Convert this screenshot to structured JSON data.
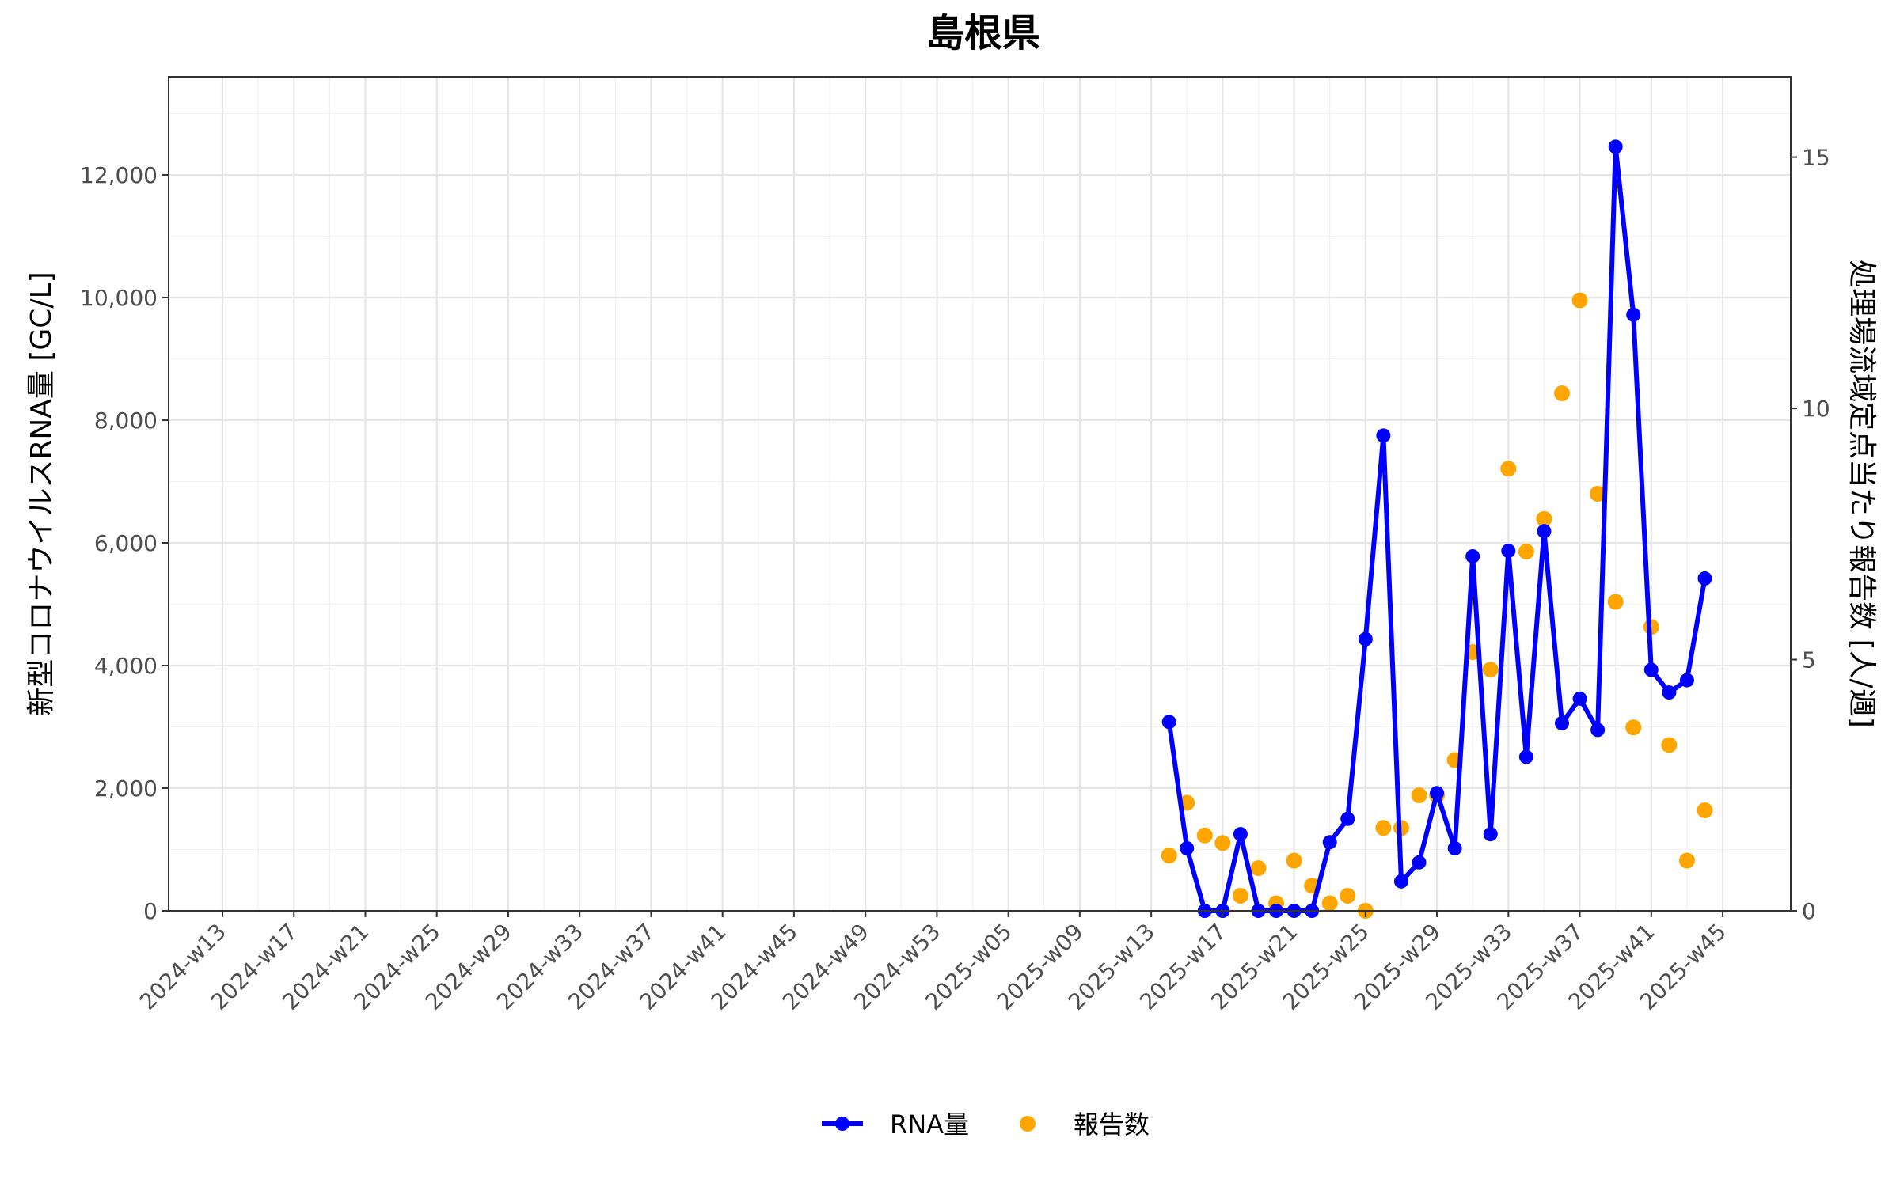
{
  "chart_data": {
    "type": "line",
    "title": "島根県",
    "ylabel": "新型コロナウイルスRNA量 [GC/L]",
    "y2label": "処理場流域定点当たり報告数 [人/週]",
    "ylim": [
      0,
      13600
    ],
    "y2lim": [
      0,
      16.6
    ],
    "yticks": [
      0,
      2000,
      4000,
      6000,
      8000,
      10000,
      12000
    ],
    "ytick_labels": [
      "0",
      "2,000",
      "4,000",
      "6,000",
      "8,000",
      "10,000",
      "12,000"
    ],
    "y2ticks": [
      0,
      5,
      10,
      15
    ],
    "y2tick_labels": [
      "0",
      "5",
      "10",
      "15"
    ],
    "x_categories": [
      "2024-w13",
      "2024-w14",
      "2024-w15",
      "2024-w16",
      "2024-w17",
      "2024-w18",
      "2024-w19",
      "2024-w20",
      "2024-w21",
      "2024-w22",
      "2024-w23",
      "2024-w24",
      "2024-w25",
      "2024-w26",
      "2024-w27",
      "2024-w28",
      "2024-w29",
      "2024-w30",
      "2024-w31",
      "2024-w32",
      "2024-w33",
      "2024-w34",
      "2024-w35",
      "2024-w36",
      "2024-w37",
      "2024-w38",
      "2024-w39",
      "2024-w40",
      "2024-w41",
      "2024-w42",
      "2024-w43",
      "2024-w44",
      "2024-w45",
      "2024-w46",
      "2024-w47",
      "2024-w48",
      "2024-w49",
      "2024-w50",
      "2024-w51",
      "2024-w52",
      "2024-w53",
      "2025-w02",
      "2025-w03",
      "2025-w04",
      "2025-w05",
      "2025-w06",
      "2025-w07",
      "2025-w08",
      "2025-w09",
      "2025-w10",
      "2025-w11",
      "2025-w12",
      "2025-w13",
      "2025-w14",
      "2025-w15",
      "2025-w16",
      "2025-w17",
      "2025-w18",
      "2025-w19",
      "2025-w20",
      "2025-w21",
      "2025-w22",
      "2025-w23",
      "2025-w24",
      "2025-w25",
      "2025-w26",
      "2025-w27",
      "2025-w28",
      "2025-w29",
      "2025-w30",
      "2025-w31",
      "2025-w32",
      "2025-w33",
      "2025-w34",
      "2025-w35",
      "2025-w36",
      "2025-w37",
      "2025-w38",
      "2025-w39",
      "2025-w40",
      "2025-w41",
      "2025-w42",
      "2025-w43",
      "2025-w44",
      "2025-w45",
      "2025-w46",
      "2025-w47"
    ],
    "x_tick_labels": [
      "2024-w13",
      "2024-w17",
      "2024-w21",
      "2024-w25",
      "2024-w29",
      "2024-w33",
      "2024-w37",
      "2024-w41",
      "2024-w45",
      "2024-w49",
      "2024-w53",
      "2025-w05",
      "2025-w09",
      "2025-w13",
      "2025-w17",
      "2025-w21",
      "2025-w25",
      "2025-w29",
      "2025-w33",
      "2025-w37",
      "2025-w41",
      "2025-w45"
    ],
    "series": [
      {
        "name": "RNA量",
        "axis": "left",
        "style": "line+points",
        "color": "#0000FF",
        "points": [
          {
            "x": "2025-w14",
            "y": 3080
          },
          {
            "x": "2025-w15",
            "y": 1020
          },
          {
            "x": "2025-w16",
            "y": 0
          },
          {
            "x": "2025-w17",
            "y": 0
          },
          {
            "x": "2025-w18",
            "y": 1250
          },
          {
            "x": "2025-w19",
            "y": 0
          },
          {
            "x": "2025-w20",
            "y": 0
          },
          {
            "x": "2025-w21",
            "y": 0
          },
          {
            "x": "2025-w22",
            "y": 0
          },
          {
            "x": "2025-w23",
            "y": 1120
          },
          {
            "x": "2025-w24",
            "y": 1500
          },
          {
            "x": "2025-w25",
            "y": 4430
          },
          {
            "x": "2025-w26",
            "y": 7750
          },
          {
            "x": "2025-w27",
            "y": 480
          },
          {
            "x": "2025-w28",
            "y": 790
          },
          {
            "x": "2025-w29",
            "y": 1920
          },
          {
            "x": "2025-w30",
            "y": 1020
          },
          {
            "x": "2025-w31",
            "y": 5780
          },
          {
            "x": "2025-w32",
            "y": 1250
          },
          {
            "x": "2025-w33",
            "y": 5870
          },
          {
            "x": "2025-w34",
            "y": 2510
          },
          {
            "x": "2025-w35",
            "y": 6190
          },
          {
            "x": "2025-w36",
            "y": 3060
          },
          {
            "x": "2025-w37",
            "y": 3460
          },
          {
            "x": "2025-w38",
            "y": 2950
          },
          {
            "x": "2025-w39",
            "y": 12460
          },
          {
            "x": "2025-w40",
            "y": 9720
          },
          {
            "x": "2025-w41",
            "y": 3930
          },
          {
            "x": "2025-w42",
            "y": 3560
          },
          {
            "x": "2025-w43",
            "y": 3760
          },
          {
            "x": "2025-w44",
            "y": 5420
          }
        ]
      },
      {
        "name": "報告数",
        "axis": "right",
        "style": "points",
        "color": "#FFA500",
        "points": [
          {
            "x": "2025-w14",
            "y": 1.1
          },
          {
            "x": "2025-w15",
            "y": 2.15
          },
          {
            "x": "2025-w16",
            "y": 1.5
          },
          {
            "x": "2025-w17",
            "y": 1.35
          },
          {
            "x": "2025-w18",
            "y": 0.3
          },
          {
            "x": "2025-w19",
            "y": 0.85
          },
          {
            "x": "2025-w20",
            "y": 0.15
          },
          {
            "x": "2025-w21",
            "y": 1.0
          },
          {
            "x": "2025-w22",
            "y": 0.5
          },
          {
            "x": "2025-w23",
            "y": 0.15
          },
          {
            "x": "2025-w24",
            "y": 0.3
          },
          {
            "x": "2025-w25",
            "y": 0.0
          },
          {
            "x": "2025-w26",
            "y": 1.65
          },
          {
            "x": "2025-w27",
            "y": 1.65
          },
          {
            "x": "2025-w28",
            "y": 2.3
          },
          {
            "x": "2025-w29",
            "y": 2.3
          },
          {
            "x": "2025-w30",
            "y": 3.0
          },
          {
            "x": "2025-w31",
            "y": 5.15
          },
          {
            "x": "2025-w32",
            "y": 4.8
          },
          {
            "x": "2025-w33",
            "y": 8.8
          },
          {
            "x": "2025-w34",
            "y": 7.15
          },
          {
            "x": "2025-w35",
            "y": 7.8
          },
          {
            "x": "2025-w36",
            "y": 10.3
          },
          {
            "x": "2025-w37",
            "y": 12.15
          },
          {
            "x": "2025-w38",
            "y": 8.3
          },
          {
            "x": "2025-w39",
            "y": 6.15
          },
          {
            "x": "2025-w40",
            "y": 3.65
          },
          {
            "x": "2025-w41",
            "y": 5.65
          },
          {
            "x": "2025-w42",
            "y": 3.3
          },
          {
            "x": "2025-w43",
            "y": 1.0
          },
          {
            "x": "2025-w44",
            "y": 2.0
          }
        ]
      }
    ],
    "grid": true,
    "legend_position": "bottom"
  }
}
